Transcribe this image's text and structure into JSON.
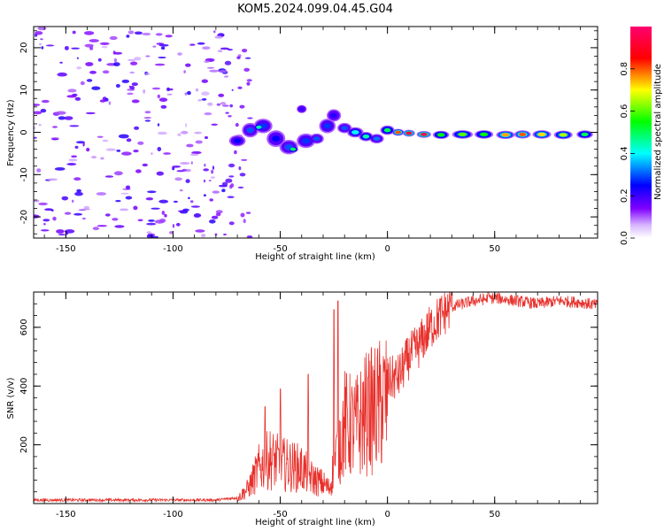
{
  "page_title": "KOM5.2024.099.04.45.G04",
  "colorbar": {
    "label": "Normalized spectral amplitude",
    "ticks": [
      0.0,
      0.2,
      0.4,
      0.6,
      0.8
    ],
    "tick_labels": [
      "0.0",
      "0.2",
      "0.4",
      "0.6",
      "0.8"
    ],
    "range": [
      0,
      1
    ],
    "colormap": [
      "#ffffff",
      "#b58cf0",
      "#8000ff",
      "#0000ff",
      "#00ffff",
      "#00ff00",
      "#ffff00",
      "#ff0000",
      "#ff0070"
    ]
  },
  "chart_data": [
    {
      "type": "heatmap",
      "title": "KOM5.2024.099.04.45.G04",
      "xlabel": "Height of straight line (km)",
      "ylabel": "Frequency (Hz)",
      "xlim": [
        -165,
        98
      ],
      "ylim": [
        -25,
        25
      ],
      "xticks": [
        -150,
        -100,
        -50,
        0,
        50
      ],
      "xtick_labels": [
        "-150",
        "-100",
        "-50",
        "0",
        "50"
      ],
      "yticks": [
        -20,
        -10,
        0,
        10,
        20
      ],
      "ytick_labels": [
        "-20",
        "-10",
        "0",
        "10",
        "20"
      ],
      "blobs": [
        {
          "x": -70,
          "y": -2,
          "w": 6,
          "h": 2.2,
          "v": 0.25
        },
        {
          "x": -64,
          "y": 0.5,
          "w": 6,
          "h": 3,
          "v": 0.3
        },
        {
          "x": -58,
          "y": 1.5,
          "w": 7,
          "h": 3,
          "v": 0.28
        },
        {
          "x": -60,
          "y": 1.2,
          "w": 3,
          "h": 1.3,
          "v": 0.45
        },
        {
          "x": -52,
          "y": -1.5,
          "w": 7,
          "h": 3.5,
          "v": 0.25
        },
        {
          "x": -46,
          "y": -3.5,
          "w": 7,
          "h": 3,
          "v": 0.3
        },
        {
          "x": -44,
          "y": -4,
          "w": 3,
          "h": 1.2,
          "v": 0.5
        },
        {
          "x": -38,
          "y": -2,
          "w": 7,
          "h": 3,
          "v": 0.28
        },
        {
          "x": -33,
          "y": -1.5,
          "w": 5,
          "h": 2,
          "v": 0.3
        },
        {
          "x": -28,
          "y": 1.5,
          "w": 6,
          "h": 3,
          "v": 0.28
        },
        {
          "x": -25,
          "y": 4,
          "w": 5,
          "h": 2.5,
          "v": 0.22
        },
        {
          "x": -40,
          "y": 5.5,
          "w": 3,
          "h": 1.5,
          "v": 0.2
        },
        {
          "x": -20,
          "y": 1,
          "w": 5,
          "h": 2,
          "v": 0.3
        },
        {
          "x": -15,
          "y": 0,
          "w": 6,
          "h": 2,
          "v": 0.4
        },
        {
          "x": -10,
          "y": -1,
          "w": 5,
          "h": 1.8,
          "v": 0.45
        },
        {
          "x": -5,
          "y": -1.5,
          "w": 5,
          "h": 1.8,
          "v": 0.32
        },
        {
          "x": 0,
          "y": 0.5,
          "w": 5,
          "h": 1.8,
          "v": 0.5
        },
        {
          "x": 5,
          "y": 0,
          "w": 4,
          "h": 1.2,
          "v": 0.8
        },
        {
          "x": 10,
          "y": -0.2,
          "w": 4,
          "h": 1.2,
          "v": 0.95
        },
        {
          "x": 17,
          "y": -0.5,
          "w": 5,
          "h": 1.2,
          "v": 0.97
        },
        {
          "x": 25,
          "y": -0.6,
          "w": 6,
          "h": 1.5,
          "v": 0.55
        },
        {
          "x": 35,
          "y": -0.5,
          "w": 8,
          "h": 1.6,
          "v": 0.6
        },
        {
          "x": 45,
          "y": -0.5,
          "w": 7,
          "h": 1.6,
          "v": 0.55
        },
        {
          "x": 55,
          "y": -0.6,
          "w": 7,
          "h": 1.5,
          "v": 0.75
        },
        {
          "x": 63,
          "y": -0.5,
          "w": 6,
          "h": 1.5,
          "v": 0.8
        },
        {
          "x": 72,
          "y": -0.5,
          "w": 7,
          "h": 1.6,
          "v": 0.72
        },
        {
          "x": 82,
          "y": -0.6,
          "w": 7,
          "h": 1.6,
          "v": 0.65
        },
        {
          "x": 92,
          "y": -0.5,
          "w": 6,
          "h": 1.5,
          "v": 0.5
        }
      ],
      "noise_region": {
        "x_range": [
          -165,
          -75
        ],
        "y_range": [
          -25,
          25
        ],
        "v": 0.12
      }
    },
    {
      "type": "line",
      "xlabel": "Height of straight line (km)",
      "ylabel": "SNR (v/v)",
      "xlim": [
        -165,
        98
      ],
      "ylim": [
        0,
        720
      ],
      "xticks": [
        -150,
        -100,
        -50,
        0,
        50
      ],
      "xtick_labels": [
        "-150",
        "-100",
        "-50",
        "0",
        "50"
      ],
      "yticks": [
        200,
        400,
        600
      ],
      "ytick_labels": [
        "200",
        "400",
        "600"
      ],
      "color": "#e8312c",
      "envelope": {
        "x": [
          -165,
          -80,
          -70,
          -65,
          -60,
          -55,
          -50,
          -45,
          -40,
          -35,
          -30,
          -27,
          -25,
          -22,
          -20,
          -15,
          -10,
          -5,
          0,
          5,
          10,
          15,
          20,
          25,
          30,
          40,
          50,
          60,
          70,
          80,
          90,
          98
        ],
        "y": [
          12,
          12,
          20,
          60,
          140,
          180,
          160,
          150,
          140,
          100,
          80,
          60,
          150,
          250,
          320,
          300,
          360,
          380,
          420,
          430,
          500,
          540,
          600,
          640,
          670,
          690,
          700,
          690,
          680,
          690,
          685,
          675
        ]
      },
      "spikes": [
        {
          "x": -57,
          "y": 330
        },
        {
          "x": -50,
          "y": 390
        },
        {
          "x": -37,
          "y": 440
        },
        {
          "x": -25,
          "y": 660
        },
        {
          "x": -23,
          "y": 690
        },
        {
          "x": -9,
          "y": 430
        },
        {
          "x": 30,
          "y": 720
        },
        {
          "x": 47,
          "y": 725
        }
      ]
    }
  ]
}
